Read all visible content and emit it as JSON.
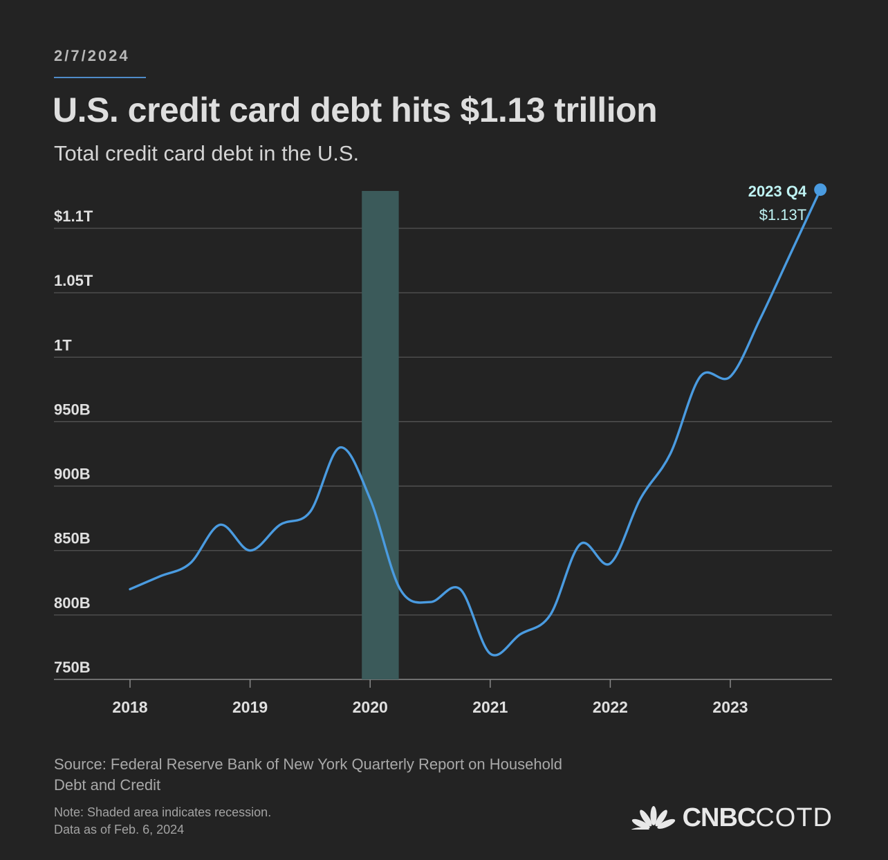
{
  "header": {
    "date": "2/7/2024",
    "title": "U.S. credit card debt hits $1.13 trillion",
    "subtitle": "Total credit card debt in the U.S."
  },
  "chart_data": {
    "type": "line",
    "title": "U.S. credit card debt hits $1.13 trillion",
    "subtitle": "Total credit card debt in the U.S.",
    "xlabel": "",
    "ylabel": "",
    "x_ticks": [
      "2018",
      "2019",
      "2020",
      "2021",
      "2022",
      "2023"
    ],
    "y_ticks": [
      {
        "value": 750,
        "label": "750B"
      },
      {
        "value": 800,
        "label": "800B"
      },
      {
        "value": 850,
        "label": "850B"
      },
      {
        "value": 900,
        "label": "900B"
      },
      {
        "value": 950,
        "label": "950B"
      },
      {
        "value": 1000,
        "label": "1T"
      },
      {
        "value": 1050,
        "label": "1.05T"
      },
      {
        "value": 1100,
        "label": "$1.1T"
      }
    ],
    "ylim": [
      750,
      1100
    ],
    "xlim": [
      "2018 Q1",
      "2023 Q4"
    ],
    "grid": true,
    "series": [
      {
        "color": "#4a9be0",
        "x": [
          "2018 Q1",
          "2018 Q2",
          "2018 Q3",
          "2018 Q4",
          "2019 Q1",
          "2019 Q2",
          "2019 Q3",
          "2019 Q4",
          "2020 Q1",
          "2020 Q2",
          "2020 Q3",
          "2020 Q4",
          "2021 Q1",
          "2021 Q2",
          "2021 Q3",
          "2021 Q4",
          "2022 Q1",
          "2022 Q2",
          "2022 Q3",
          "2022 Q4",
          "2023 Q1",
          "2023 Q2",
          "2023 Q3",
          "2023 Q4"
        ],
        "values": [
          820,
          830,
          840,
          870,
          850,
          870,
          880,
          930,
          890,
          820,
          810,
          820,
          770,
          785,
          800,
          855,
          840,
          890,
          925,
          985,
          985,
          1030,
          1080,
          1130
        ]
      }
    ],
    "shaded_regions": [
      {
        "from": "2020 Q1",
        "to": "2020 Q2",
        "color": "#3b5a5a"
      }
    ],
    "annotation": {
      "label": "2023 Q4",
      "value_label": "$1.13T",
      "color": "#bff3f3"
    }
  },
  "footer": {
    "source": "Source: Federal Reserve Bank of New York Quarterly Report on Household Debt and Credit",
    "note_lines": [
      "Note: Shaded area indicates recession.",
      "Data as of Feb. 6, 2024"
    ],
    "logo_bold": "CNBC",
    "logo_light": "COTD"
  }
}
